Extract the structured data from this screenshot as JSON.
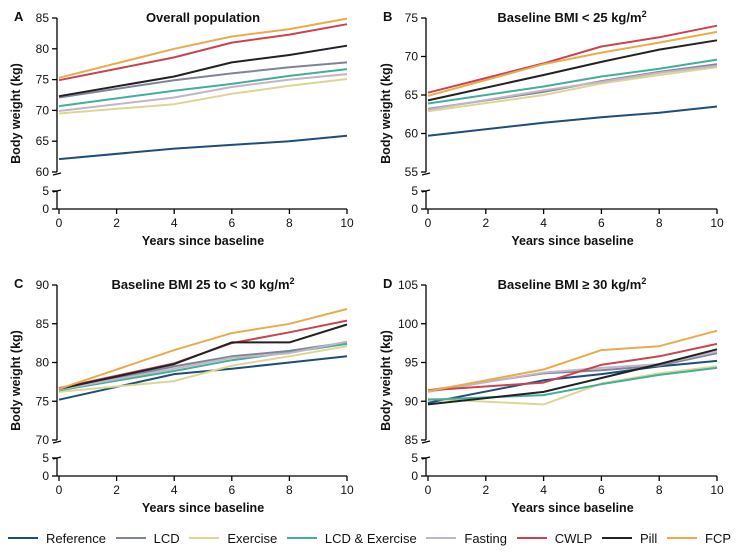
{
  "legend": {
    "items": [
      {
        "name": "Reference",
        "color": "#1f4e79"
      },
      {
        "name": "LCD",
        "color": "#7f8596"
      },
      {
        "name": "Exercise",
        "color": "#ddd595"
      },
      {
        "name": "LCD & Exercise",
        "color": "#44ad9c"
      },
      {
        "name": "Fasting",
        "color": "#c2b5c5"
      },
      {
        "name": "CWLP",
        "color": "#c9444f"
      },
      {
        "name": "Pill",
        "color": "#222222"
      },
      {
        "name": "FCP",
        "color": "#e9ab4b"
      }
    ]
  },
  "chart_data": [
    {
      "panel": "A",
      "type": "line",
      "title": "Overall population",
      "title_superscript": "",
      "xlabel": "Years since baseline",
      "ylabel": "Body weight (kg)",
      "x": [
        0,
        4,
        6,
        8,
        10
      ],
      "xticks": [
        "0",
        "2",
        "4",
        "6",
        "8",
        "10"
      ],
      "ylim": [
        60,
        85
      ],
      "yticks": [
        60,
        65,
        70,
        75,
        80,
        85
      ],
      "ybreak_ticks": [
        0,
        5
      ],
      "series": [
        {
          "name": "Reference",
          "values": [
            62.1,
            63.8,
            64.4,
            65.0,
            65.9
          ]
        },
        {
          "name": "LCD",
          "values": [
            72.1,
            74.9,
            76.0,
            77.0,
            77.8
          ]
        },
        {
          "name": "Exercise",
          "values": [
            69.5,
            71.0,
            72.7,
            74.0,
            75.1
          ]
        },
        {
          "name": "LCD & Exercise",
          "values": [
            70.7,
            73.2,
            74.3,
            75.6,
            76.7
          ]
        },
        {
          "name": "Fasting",
          "values": [
            69.9,
            72.1,
            73.8,
            75.0,
            75.9
          ]
        },
        {
          "name": "CWLP",
          "values": [
            74.9,
            78.6,
            81.0,
            82.3,
            84.0
          ]
        },
        {
          "name": "Pill",
          "values": [
            72.3,
            75.5,
            77.8,
            79.0,
            80.5
          ]
        },
        {
          "name": "FCP",
          "values": [
            75.3,
            80.0,
            82.0,
            83.2,
            84.9
          ]
        }
      ]
    },
    {
      "panel": "B",
      "type": "line",
      "title": "Baseline BMI < 25 kg/m",
      "title_superscript": "2",
      "xlabel": "Years since baseline",
      "ylabel": "Body weight (kg)",
      "x": [
        0,
        4,
        6,
        8,
        10
      ],
      "xticks": [
        "0",
        "2",
        "4",
        "6",
        "8",
        "10"
      ],
      "ylim": [
        55,
        75
      ],
      "yticks": [
        55,
        60,
        65,
        70,
        75
      ],
      "ybreak_ticks": [
        0,
        5
      ],
      "series": [
        {
          "name": "Reference",
          "values": [
            59.7,
            61.4,
            62.1,
            62.7,
            63.5
          ]
        },
        {
          "name": "LCD",
          "values": [
            63.2,
            65.4,
            66.8,
            68.0,
            69.0
          ]
        },
        {
          "name": "Exercise",
          "values": [
            62.9,
            65.0,
            66.5,
            67.6,
            68.6
          ]
        },
        {
          "name": "LCD & Exercise",
          "values": [
            63.9,
            66.1,
            67.4,
            68.4,
            69.6
          ]
        },
        {
          "name": "Fasting",
          "values": [
            63.1,
            65.6,
            66.7,
            67.9,
            68.8
          ]
        },
        {
          "name": "CWLP",
          "values": [
            65.3,
            69.1,
            71.3,
            72.5,
            74.0
          ]
        },
        {
          "name": "Pill",
          "values": [
            64.3,
            67.6,
            69.3,
            70.9,
            72.1
          ]
        },
        {
          "name": "FCP",
          "values": [
            64.9,
            69.0,
            70.5,
            71.8,
            73.2
          ]
        }
      ]
    },
    {
      "panel": "C",
      "type": "line",
      "title": "Baseline BMI 25 to < 30 kg/m",
      "title_superscript": "2",
      "xlabel": "Years since baseline",
      "ylabel": "Body weight (kg)",
      "x": [
        0,
        4,
        6,
        8,
        10
      ],
      "xticks": [
        "0",
        "2",
        "4",
        "6",
        "8",
        "10"
      ],
      "ylim": [
        70,
        90
      ],
      "yticks": [
        70,
        75,
        80,
        85,
        90
      ],
      "ybreak_ticks": [
        0,
        5
      ],
      "series": [
        {
          "name": "Reference",
          "values": [
            75.2,
            78.5,
            79.2,
            80.0,
            80.8
          ]
        },
        {
          "name": "LCD",
          "values": [
            76.5,
            79.5,
            80.8,
            81.5,
            82.6
          ]
        },
        {
          "name": "Exercise",
          "values": [
            76.2,
            77.6,
            79.6,
            80.8,
            82.1
          ]
        },
        {
          "name": "LCD & Exercise",
          "values": [
            76.4,
            78.9,
            80.3,
            81.3,
            82.4
          ]
        },
        {
          "name": "Fasting",
          "values": [
            76.5,
            79.2,
            80.6,
            81.2,
            82.7
          ]
        },
        {
          "name": "CWLP",
          "values": [
            76.7,
            79.9,
            82.5,
            83.9,
            85.4
          ]
        },
        {
          "name": "Pill",
          "values": [
            76.6,
            79.8,
            82.6,
            82.6,
            84.9
          ]
        },
        {
          "name": "FCP",
          "values": [
            76.6,
            81.6,
            83.8,
            85.0,
            86.9
          ]
        }
      ]
    },
    {
      "panel": "D",
      "type": "line",
      "title": "Baseline BMI ≥ 30 kg/m",
      "title_superscript": "2",
      "xlabel": "Years since baseline",
      "ylabel": "Body weight (kg)",
      "x": [
        0,
        4,
        6,
        8,
        10
      ],
      "xticks": [
        "0",
        "2",
        "4",
        "6",
        "8",
        "10"
      ],
      "ylim": [
        85,
        105
      ],
      "yticks": [
        85,
        90,
        95,
        100,
        105
      ],
      "ybreak_ticks": [
        0,
        5
      ],
      "series": [
        {
          "name": "Reference",
          "values": [
            89.8,
            92.7,
            93.5,
            94.5,
            95.2
          ]
        },
        {
          "name": "LCD",
          "values": [
            91.4,
            93.6,
            94.0,
            94.6,
            96.2
          ]
        },
        {
          "name": "Exercise",
          "values": [
            90.3,
            89.6,
            92.3,
            93.6,
            94.5
          ]
        },
        {
          "name": "LCD & Exercise",
          "values": [
            90.2,
            90.8,
            92.2,
            93.4,
            94.3
          ]
        },
        {
          "name": "Fasting",
          "values": [
            91.2,
            93.7,
            94.3,
            94.8,
            96.4
          ]
        },
        {
          "name": "CWLP",
          "values": [
            91.4,
            92.4,
            94.7,
            95.8,
            97.4
          ]
        },
        {
          "name": "Pill",
          "values": [
            89.6,
            91.2,
            93.0,
            94.8,
            96.7
          ]
        },
        {
          "name": "FCP",
          "values": [
            91.3,
            94.1,
            96.6,
            97.1,
            99.1
          ]
        }
      ]
    }
  ]
}
